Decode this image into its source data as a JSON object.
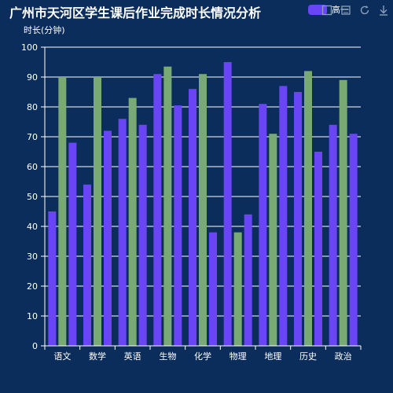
{
  "chart_data": {
    "type": "bar",
    "title": "广州市天河区学生课后作业完成时长情况分析",
    "ylabel": "时长(分钟)",
    "xlabel": "",
    "ylim": [
      0,
      100
    ],
    "yticks": [
      0,
      10,
      20,
      30,
      40,
      50,
      60,
      70,
      80,
      90,
      100
    ],
    "grid": true,
    "legend_position": "top-right",
    "categories": [
      "语文",
      "数学",
      "英语",
      "生物",
      "化学",
      "物理",
      "地理",
      "历史",
      "政治"
    ],
    "series": [
      {
        "name": "高一",
        "color": "#6a45f5",
        "values": [
          45,
          54,
          76,
          91,
          86,
          95,
          81,
          85,
          74
        ]
      },
      {
        "name": "",
        "color": "#7aaa74",
        "values": [
          90,
          90,
          83,
          93.5,
          91,
          38,
          71,
          92,
          89
        ]
      },
      {
        "name": "",
        "color": "#6a45f5",
        "values": [
          68,
          72,
          74,
          80.5,
          38,
          44,
          87,
          65,
          71
        ]
      }
    ]
  },
  "colors": {
    "background": "#0b2d5b",
    "axis": "#ffffff",
    "grid": "#ffffff"
  },
  "toolbox": [
    "data-view-icon",
    "bar-chart-icon",
    "restore-icon",
    "download-icon"
  ]
}
